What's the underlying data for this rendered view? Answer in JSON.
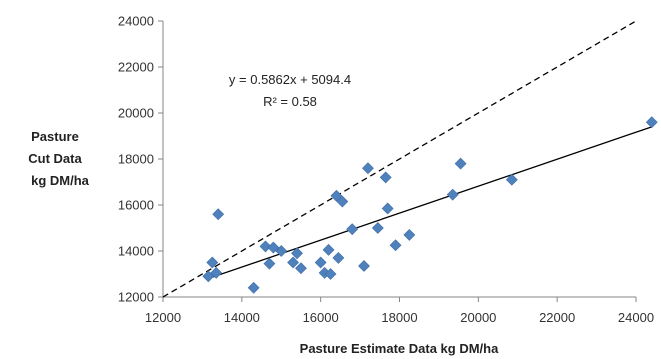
{
  "chart_data": {
    "type": "scatter",
    "title": "",
    "xlabel": "Pasture Estimate Data kg DM/ha",
    "ylabel_lines": [
      "Pasture",
      "Cut Data",
      "kg DM/ha"
    ],
    "xlim": [
      12000,
      24000
    ],
    "ylim": [
      12000,
      24000
    ],
    "x_ticks": [
      12000,
      14000,
      16000,
      18000,
      20000,
      22000,
      24000
    ],
    "y_ticks": [
      12000,
      14000,
      16000,
      18000,
      20000,
      22000,
      24000
    ],
    "grid": false,
    "legend": "none",
    "marker": "diamond",
    "marker_color": "#4f81bd",
    "line_color": "#000000",
    "points": [
      {
        "x": 13150,
        "y": 12900
      },
      {
        "x": 13250,
        "y": 13500
      },
      {
        "x": 13350,
        "y": 13050
      },
      {
        "x": 13400,
        "y": 15600
      },
      {
        "x": 14300,
        "y": 12400
      },
      {
        "x": 14600,
        "y": 14200
      },
      {
        "x": 14700,
        "y": 13450
      },
      {
        "x": 14800,
        "y": 14150
      },
      {
        "x": 15000,
        "y": 14000
      },
      {
        "x": 15300,
        "y": 13500
      },
      {
        "x": 15400,
        "y": 13900
      },
      {
        "x": 15500,
        "y": 13250
      },
      {
        "x": 16000,
        "y": 13500
      },
      {
        "x": 16100,
        "y": 13050
      },
      {
        "x": 16200,
        "y": 14050
      },
      {
        "x": 16250,
        "y": 13000
      },
      {
        "x": 16400,
        "y": 16400
      },
      {
        "x": 16450,
        "y": 13700
      },
      {
        "x": 16550,
        "y": 16150
      },
      {
        "x": 16800,
        "y": 14950
      },
      {
        "x": 17100,
        "y": 13350
      },
      {
        "x": 17200,
        "y": 17600
      },
      {
        "x": 17450,
        "y": 15000
      },
      {
        "x": 17650,
        "y": 17200
      },
      {
        "x": 17700,
        "y": 15850
      },
      {
        "x": 17900,
        "y": 14250
      },
      {
        "x": 18250,
        "y": 14700
      },
      {
        "x": 19350,
        "y": 16450
      },
      {
        "x": 19550,
        "y": 17800
      },
      {
        "x": 20850,
        "y": 17100
      },
      {
        "x": 24400,
        "y": 19600
      }
    ],
    "trendline": {
      "slope": 0.5862,
      "intercept": 5094.4,
      "x_range": [
        13150,
        24400
      ],
      "style": "solid"
    },
    "reference_line": {
      "label": "",
      "x_range": [
        12000,
        24000
      ],
      "style": "dashed",
      "relation": "y = x"
    },
    "annotations": {
      "equation": "y = 0.5862x + 5094.4",
      "r_squared": "R² = 0.58"
    }
  }
}
